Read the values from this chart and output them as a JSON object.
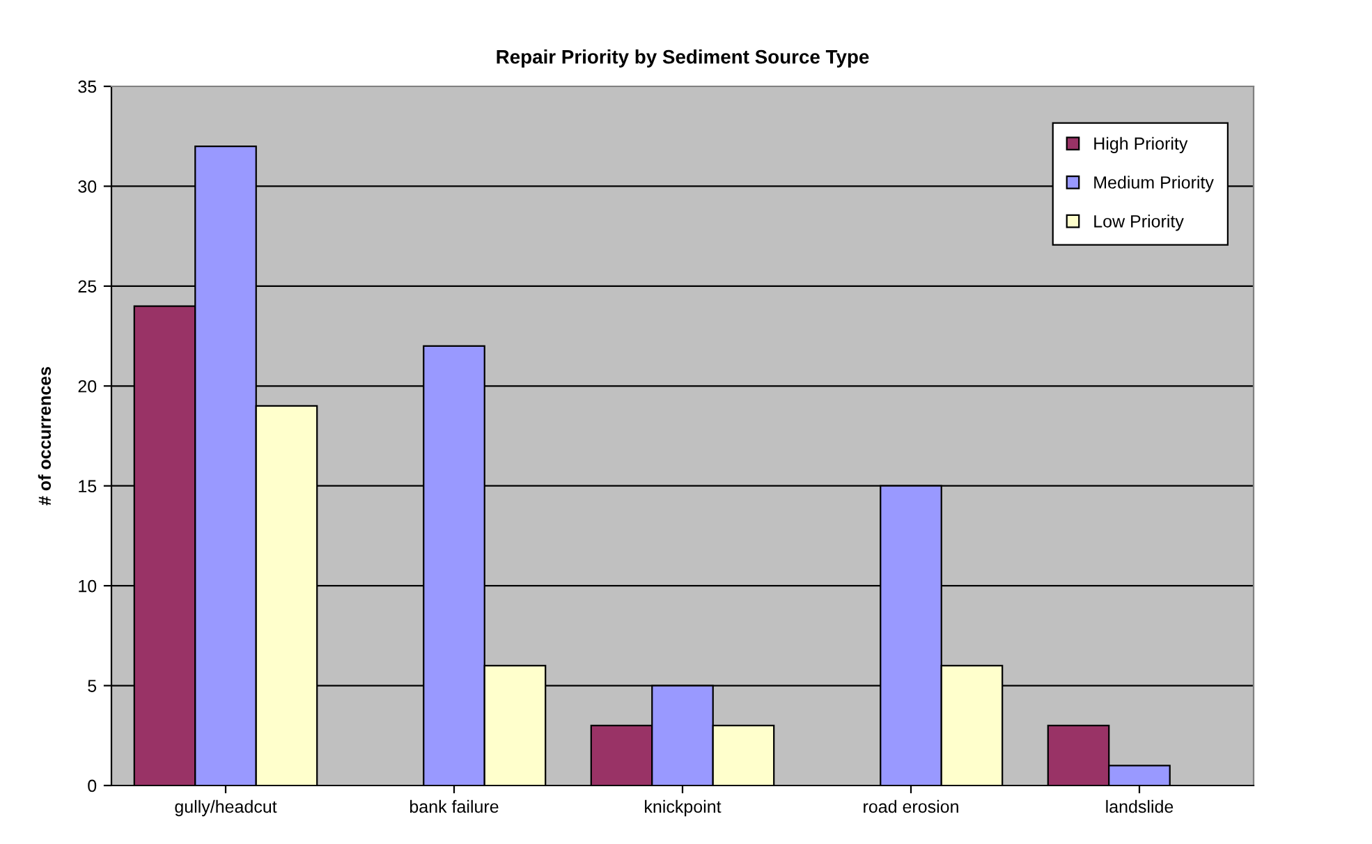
{
  "chart_data": {
    "type": "bar",
    "title": "Repair Priority by Sediment Source Type",
    "ylabel": "# of occurrences",
    "categories": [
      "gully/headcut",
      "bank failure",
      "knickpoint",
      "road erosion",
      "landslide"
    ],
    "series": [
      {
        "name": "High Priority",
        "color": "#993366",
        "values": [
          24,
          0,
          3,
          0,
          3
        ]
      },
      {
        "name": "Medium Priority",
        "color": "#9999ff",
        "values": [
          32,
          22,
          5,
          15,
          1
        ]
      },
      {
        "name": "Low Priority",
        "color": "#ffffcc",
        "values": [
          19,
          6,
          3,
          6,
          0
        ]
      }
    ],
    "ylim": [
      0,
      35
    ],
    "yticks": [
      0,
      5,
      10,
      15,
      20,
      25,
      30,
      35
    ],
    "grid": "y",
    "legend": "top right"
  }
}
